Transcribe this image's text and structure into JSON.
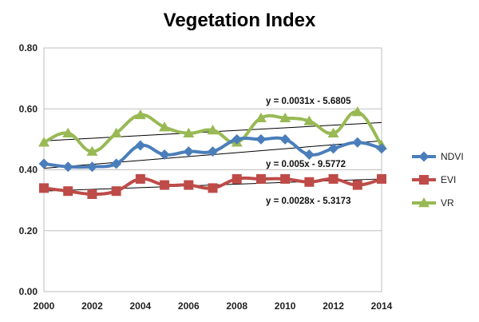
{
  "chart_data": {
    "type": "line",
    "title": "Vegetation Index",
    "x": [
      2000,
      2001,
      2002,
      2003,
      2004,
      2005,
      2006,
      2007,
      2008,
      2009,
      2010,
      2011,
      2012,
      2013,
      2014
    ],
    "x_ticks": [
      "2000",
      "2002",
      "2004",
      "2006",
      "2008",
      "2010",
      "2012",
      "2014"
    ],
    "xlim": [
      2000,
      2014
    ],
    "y_ticks": [
      "0.00",
      "0.20",
      "0.40",
      "0.60",
      "0.80"
    ],
    "ylim": [
      0,
      0.8
    ],
    "grid": "horizontal",
    "legend": "right",
    "series": [
      {
        "name": "NDVI",
        "color": "#4a7ebb",
        "marker": "diamond",
        "values": [
          0.42,
          0.41,
          0.41,
          0.42,
          0.48,
          0.45,
          0.46,
          0.46,
          0.5,
          0.5,
          0.5,
          0.45,
          0.47,
          0.49,
          0.47
        ]
      },
      {
        "name": "EVI",
        "color": "#be4b48",
        "marker": "square",
        "values": [
          0.34,
          0.33,
          0.32,
          0.33,
          0.37,
          0.35,
          0.35,
          0.34,
          0.37,
          0.37,
          0.37,
          0.36,
          0.37,
          0.35,
          0.37
        ]
      },
      {
        "name": "VR",
        "color": "#98b954",
        "marker": "triangle",
        "values": [
          0.49,
          0.52,
          0.46,
          0.52,
          0.58,
          0.54,
          0.52,
          0.53,
          0.49,
          0.57,
          0.57,
          0.56,
          0.52,
          0.59,
          0.48
        ]
      }
    ],
    "trendlines": [
      {
        "label": "y = 0.0031x  - 5.6805",
        "start": 0.495,
        "end": 0.555
      },
      {
        "label": "y = 0.005x  - 9.5772",
        "start": 0.405,
        "end": 0.495
      },
      {
        "label": "y = 0.0028x  - 5.3173",
        "start": 0.33,
        "end": 0.37
      }
    ]
  }
}
